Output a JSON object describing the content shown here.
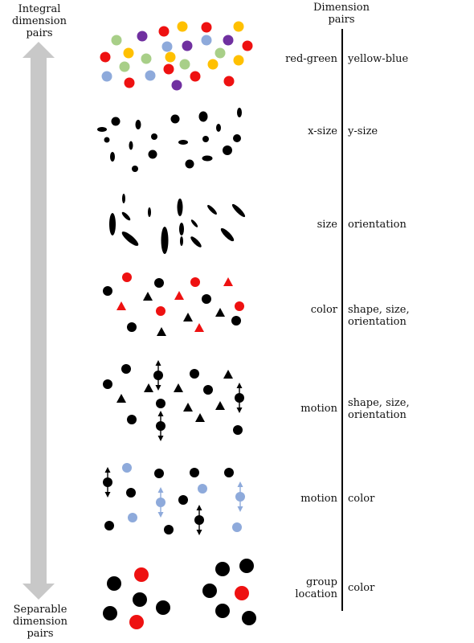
{
  "header": {
    "left_title": "Integral\ndimension\npairs",
    "right_title": "Dimension\npairs"
  },
  "footer": {
    "left_title": "Separable\ndimension\npairs"
  },
  "rows": [
    {
      "left": "red-green",
      "right": "yellow-blue"
    },
    {
      "left": "x-size",
      "right": "y-size"
    },
    {
      "left": "size",
      "right": "orientation"
    },
    {
      "left": "color",
      "right": "shape, size,\norientation"
    },
    {
      "left": "motion",
      "right": "shape, size,\norientation"
    },
    {
      "left": "motion",
      "right": "color"
    },
    {
      "left": "group\nlocation",
      "right": "color"
    }
  ],
  "colors": {
    "arrow": "#c8c8c8",
    "black": "#000000",
    "red": "#ee1111",
    "green": "#a8cf88",
    "purple": "#7030a0",
    "yellow": "#ffc000",
    "blue": "#8eaadb",
    "divider": "#000000"
  }
}
